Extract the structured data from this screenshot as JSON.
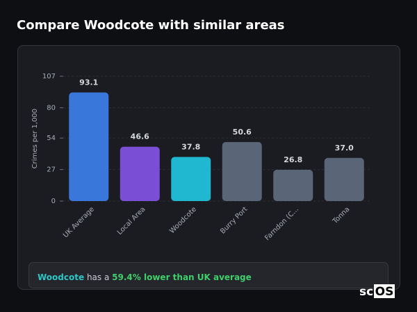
{
  "header": {
    "title": "Compare Woodcote with similar areas"
  },
  "chart_data": {
    "type": "bar",
    "y_label": "Crimes per 1,000",
    "categories": [
      "UK Average",
      "Local Area",
      "Woodcote",
      "Burry Port",
      "Farndon (C...",
      "Tonna"
    ],
    "values": [
      93.1,
      46.6,
      37.8,
      50.6,
      26.8,
      37.0
    ],
    "value_labels": [
      "93.1",
      "46.6",
      "37.8",
      "50.6",
      "26.8",
      "37.0"
    ],
    "colors": [
      "#3a77da",
      "#7a4fd6",
      "#20b8d0",
      "#5a6577",
      "#5a6577",
      "#5a6577"
    ],
    "ylim": [
      0,
      107
    ],
    "yticks": [
      0,
      27,
      54,
      80,
      107
    ],
    "grid": true
  },
  "summary": {
    "area": "Woodcote",
    "text": "has a",
    "highlight": "59.4% lower than UK average"
  },
  "logo": {
    "prefix": "sc",
    "boxed": "OS"
  }
}
